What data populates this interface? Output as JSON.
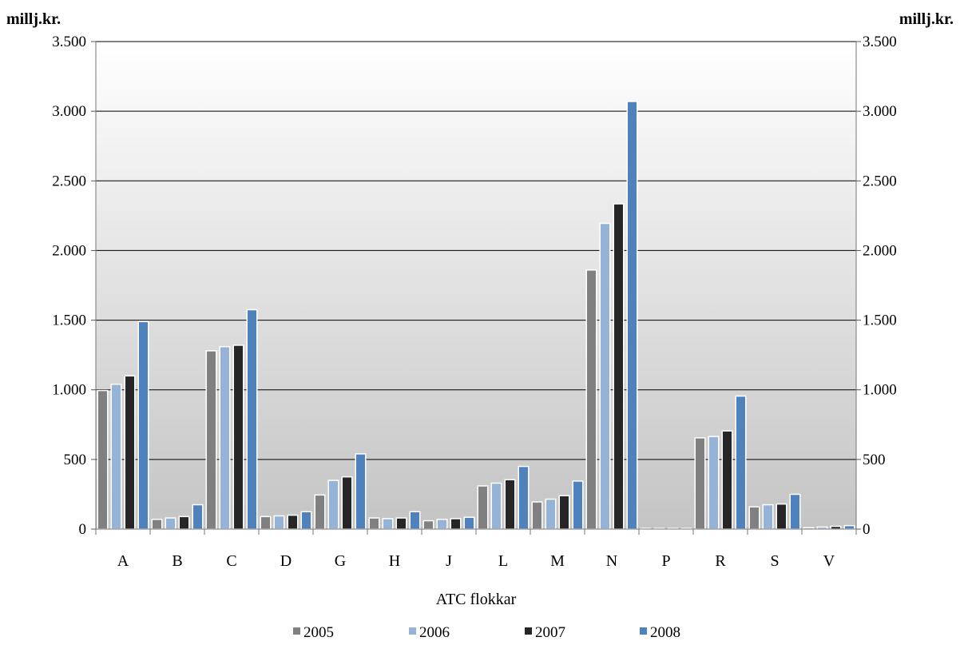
{
  "chart_data": {
    "type": "bar",
    "y_unit_left": "millj.kr.",
    "y_unit_right": "millj.kr.",
    "xlabel": "ATC flokkar",
    "categories": [
      "A",
      "B",
      "C",
      "D",
      "G",
      "H",
      "J",
      "L",
      "M",
      "N",
      "P",
      "R",
      "S",
      "V"
    ],
    "series": [
      {
        "name": "2005",
        "color": "#808080",
        "values": [
          995,
          70,
          1280,
          90,
          245,
          80,
          60,
          310,
          195,
          1860,
          5,
          655,
          160,
          10
        ]
      },
      {
        "name": "2006",
        "color": "#95b3d7",
        "values": [
          1040,
          80,
          1310,
          95,
          350,
          75,
          70,
          330,
          215,
          2195,
          5,
          665,
          175,
          15
        ]
      },
      {
        "name": "2007",
        "color": "#262626",
        "values": [
          1100,
          90,
          1320,
          100,
          375,
          80,
          75,
          355,
          240,
          2335,
          5,
          705,
          180,
          20
        ]
      },
      {
        "name": "2008",
        "color": "#4f81bd",
        "values": [
          1490,
          175,
          1575,
          125,
          540,
          125,
          85,
          450,
          345,
          3070,
          5,
          955,
          250,
          25
        ]
      }
    ],
    "ylim": [
      0,
      3500
    ],
    "y_ticks": [
      {
        "value": 0,
        "label": "0"
      },
      {
        "value": 500,
        "label": "500"
      },
      {
        "value": 1000,
        "label": "1.000"
      },
      {
        "value": 1500,
        "label": "1.500"
      },
      {
        "value": 2000,
        "label": "2.000"
      },
      {
        "value": 2500,
        "label": "2.500"
      },
      {
        "value": 3000,
        "label": "3.000"
      },
      {
        "value": 3500,
        "label": "3.500"
      }
    ],
    "grid": true,
    "legend_position": "bottom"
  }
}
